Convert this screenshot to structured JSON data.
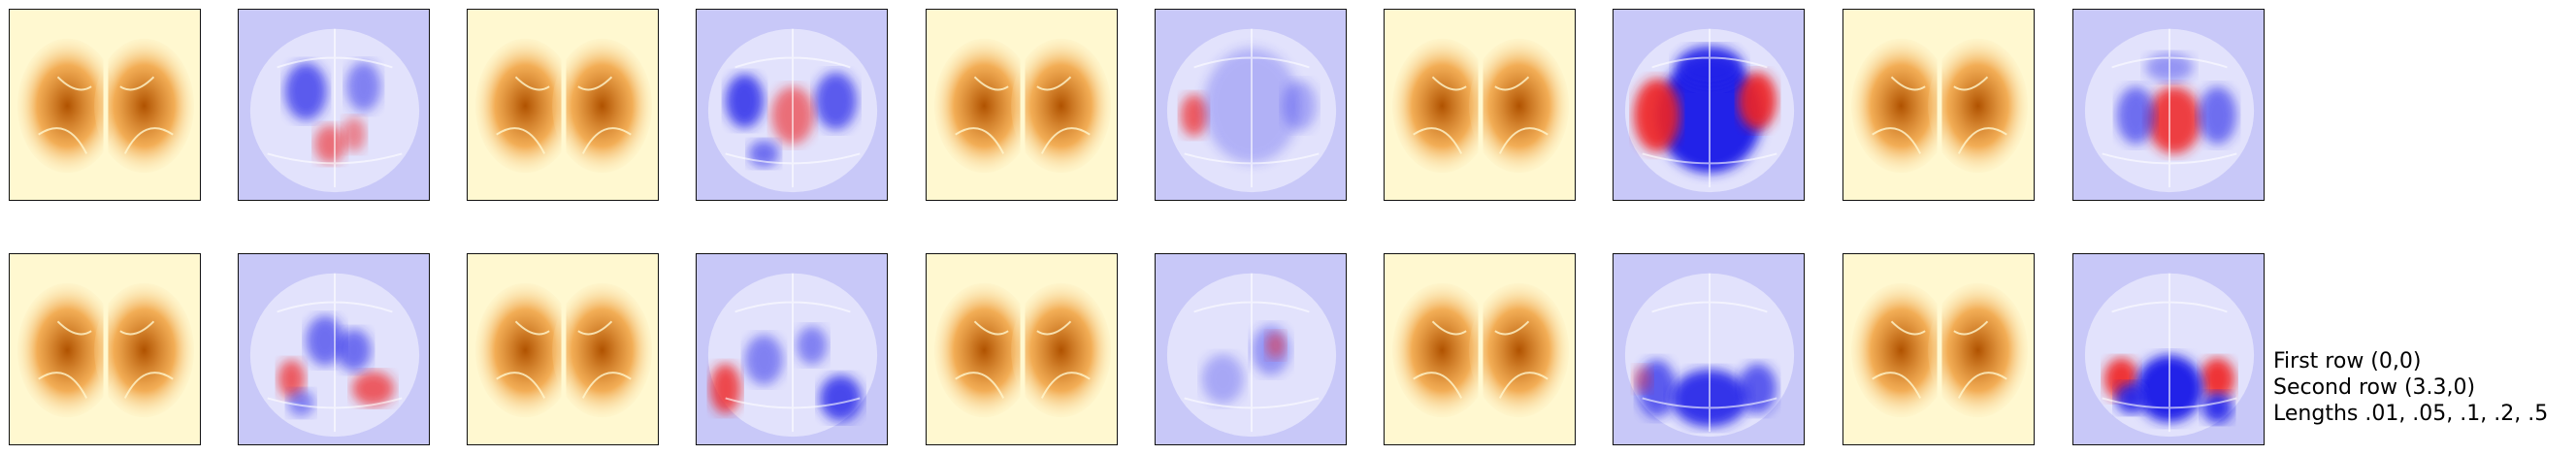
{
  "caption": {
    "line1": "First row (0,0)",
    "line2": "Second row (3.3,0)",
    "line3": "Lengths .01, .05, .1, .2, .5"
  },
  "colors": {
    "heat_bg": "#fff8d0",
    "heat_mid": "#f0a040",
    "heat_dark": "#b05200",
    "diverge_bg": "#c8c8f8",
    "diverge_blue": "#2020e8",
    "diverge_red": "#f02020"
  },
  "rows": [
    {
      "panels": [
        {
          "type": "heat",
          "intensity": 1.0
        },
        {
          "type": "diverge",
          "variant": "a"
        },
        {
          "type": "heat",
          "intensity": 0.9
        },
        {
          "type": "diverge",
          "variant": "b"
        },
        {
          "type": "heat",
          "intensity": 0.85
        },
        {
          "type": "diverge",
          "variant": "c"
        },
        {
          "type": "heat",
          "intensity": 0.95
        },
        {
          "type": "diverge",
          "variant": "d"
        },
        {
          "type": "heat",
          "intensity": 0.9
        },
        {
          "type": "diverge",
          "variant": "e"
        }
      ]
    },
    {
      "panels": [
        {
          "type": "heat",
          "intensity": 0.8
        },
        {
          "type": "diverge",
          "variant": "f"
        },
        {
          "type": "heat",
          "intensity": 0.8
        },
        {
          "type": "diverge",
          "variant": "g"
        },
        {
          "type": "heat",
          "intensity": 0.85
        },
        {
          "type": "diverge",
          "variant": "h"
        },
        {
          "type": "heat",
          "intensity": 0.85
        },
        {
          "type": "diverge",
          "variant": "i"
        },
        {
          "type": "heat",
          "intensity": 0.95
        },
        {
          "type": "diverge",
          "variant": "j"
        }
      ]
    }
  ]
}
